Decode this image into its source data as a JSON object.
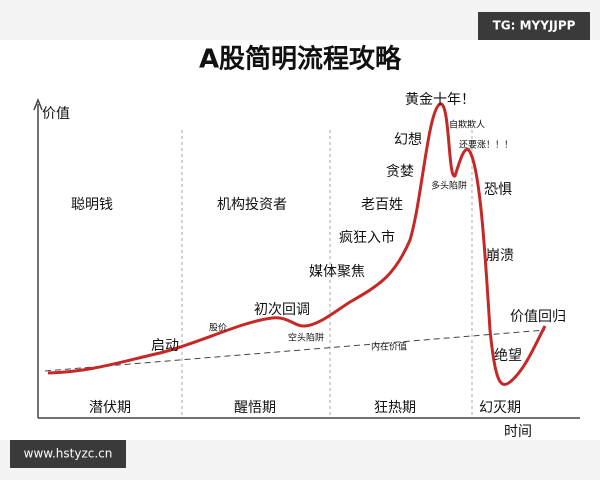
{
  "title": "A股简明流程攻略",
  "watermark_top": "TG: MYYJJPP",
  "watermark_bottom": "www.hstyzc.cn",
  "axes": {
    "y_label": "价值",
    "x_label": "时间"
  },
  "participants": [
    "聪明钱",
    "机构投资者",
    "老百姓"
  ],
  "phases": [
    "潜伏期",
    "醒悟期",
    "狂热期",
    "幻灭期"
  ],
  "annotations": [
    "启动",
    "股价",
    "初次回调",
    "空头陷阱",
    "媒体聚焦",
    "疯狂入市",
    "贪婪",
    "幻想",
    "黄金十年！",
    "自欺欺人",
    "多头陷阱",
    "还要涨！！！",
    "恐惧",
    "崩溃",
    "价值回归",
    "绝望",
    "内在价值"
  ]
}
